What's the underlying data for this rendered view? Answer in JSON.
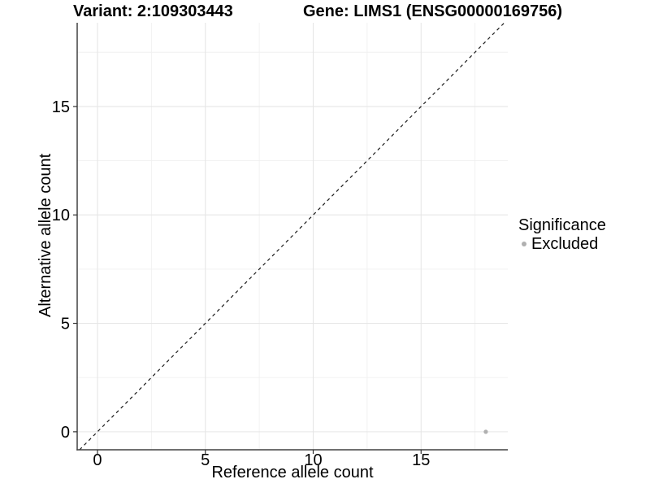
{
  "title": {
    "variant": "Variant: 2:109303443",
    "gene": "Gene: LIMS1 (ENSG00000169756)"
  },
  "legend": {
    "title": "Significance",
    "items": [
      {
        "label": "Excluded",
        "color": "#b0b0b0"
      }
    ]
  },
  "colors": {
    "background": "#ffffff",
    "grid_major": "#e6e6e6",
    "grid_minor": "#f0f0f0",
    "axis_line": "#404040",
    "tick_mark": "#333333",
    "tick_label": "#000000",
    "identity_line": "#1a1a1a",
    "point": "#b0b0b0"
  },
  "chart_data": {
    "type": "scatter",
    "title": "Variant: 2:109303443 | Gene: LIMS1 (ENSG00000169756)",
    "xlabel": "Reference allele count",
    "ylabel": "Alternative allele count",
    "xlim": [
      -0.94,
      19.02
    ],
    "ylim": [
      -0.83,
      18.86
    ],
    "x_ticks": [
      0,
      5,
      10,
      15
    ],
    "y_ticks": [
      0,
      5,
      10,
      15
    ],
    "x_minor_ticks": [
      2.5,
      7.5,
      12.5,
      17.5
    ],
    "y_minor_ticks": [
      2.5,
      7.5,
      12.5,
      17.5
    ],
    "grid": true,
    "legend_position": "right",
    "series": [
      {
        "name": "Excluded",
        "color": "#b0b0b0",
        "points": [
          {
            "x": 18,
            "y": 0
          }
        ]
      }
    ],
    "reference_line": {
      "kind": "identity",
      "equation": "y = x",
      "style": "dashed",
      "color": "#1a1a1a"
    }
  }
}
